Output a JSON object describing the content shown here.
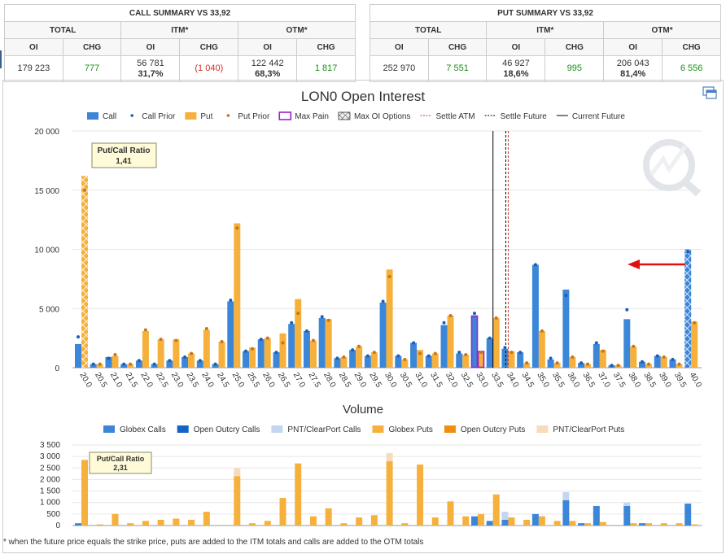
{
  "call_summary": {
    "title": "CALL SUMMARY VS 33,92",
    "group_total": "TOTAL",
    "group_itm": "ITM*",
    "group_otm": "OTM*",
    "col_oi": "OI",
    "col_chg": "CHG",
    "total_oi": "179 223",
    "total_chg": "777",
    "itm_oi": "56 781",
    "itm_pct": "31,7%",
    "itm_chg": "(1 040)",
    "otm_oi": "122 442",
    "otm_pct": "68,3%",
    "otm_chg": "1 817"
  },
  "put_summary": {
    "title": "PUT SUMMARY VS 33,92",
    "group_total": "TOTAL",
    "group_itm": "ITM*",
    "group_otm": "OTM*",
    "col_oi": "OI",
    "col_chg": "CHG",
    "total_oi": "252 970",
    "total_chg": "7 551",
    "itm_oi": "46 927",
    "itm_pct": "18,6%",
    "itm_chg": "995",
    "otm_oi": "206 043",
    "otm_pct": "81,4%",
    "otm_chg": "6 556"
  },
  "colors": {
    "call": "#3b86d8",
    "put": "#f6b13c",
    "call_prior": "#1a5fb4",
    "put_prior": "#c8741a",
    "max_pain": "#9b20c8",
    "settle_atm": "#c0392b",
    "open_outcry_calls": "#1562c8",
    "pnt_calls": "#c4d6ee",
    "open_outcry_puts": "#ef8f12",
    "pnt_puts": "#f6dcbc",
    "arrow": "#e01010"
  },
  "footnote": "* when the future price equals the strike price, puts are added to the ITM totals and calls are added to the OTM totals",
  "chart_data": [
    {
      "type": "bar",
      "title": "LON0 Open Interest",
      "legend": [
        "Call",
        "Call Prior",
        "Put",
        "Put Prior",
        "Max Pain",
        "Max OI Options",
        "Settle ATM",
        "Settle Future",
        "Current Future"
      ],
      "legend_placement": "top",
      "categories": [
        "20.0",
        "20.5",
        "21.0",
        "21.5",
        "22.0",
        "22.5",
        "23.0",
        "23.5",
        "24.0",
        "24.5",
        "25.0",
        "25.5",
        "26.0",
        "26.5",
        "27.0",
        "27.5",
        "28.0",
        "28.5",
        "29.0",
        "29.5",
        "30.0",
        "30.5",
        "31.0",
        "31.5",
        "32.0",
        "32.5",
        "33.0",
        "33.5",
        "34.0",
        "34.5",
        "35.0",
        "35.5",
        "36.0",
        "36.5",
        "37.0",
        "37.5",
        "38.0",
        "38.5",
        "39.0",
        "39.5",
        "40.0"
      ],
      "series": [
        {
          "name": "Call",
          "values": [
            2000,
            300,
            900,
            300,
            600,
            300,
            600,
            900,
            600,
            300,
            5600,
            1400,
            2400,
            1300,
            3700,
            3100,
            4200,
            800,
            1500,
            1000,
            5500,
            1000,
            2100,
            1000,
            3600,
            1200,
            4400,
            2500,
            1600,
            1300,
            8700,
            700,
            6600,
            400,
            2000,
            200,
            4100,
            500,
            1000,
            700,
            10000
          ]
        },
        {
          "name": "Call Prior",
          "values": [
            2600,
            300,
            800,
            300,
            600,
            300,
            600,
            900,
            600,
            300,
            5700,
            1400,
            2400,
            1300,
            3800,
            3100,
            4300,
            800,
            1500,
            1000,
            5600,
            1000,
            2100,
            1000,
            3800,
            1300,
            4600,
            2500,
            1700,
            1300,
            8700,
            800,
            6100,
            400,
            2100,
            200,
            4900,
            500,
            1000,
            700,
            9800
          ]
        },
        {
          "name": "Put",
          "values": [
            16200,
            300,
            1000,
            300,
            3100,
            2400,
            2400,
            1200,
            3200,
            2200,
            12200,
            1700,
            2500,
            2900,
            5800,
            2300,
            4100,
            900,
            1800,
            1300,
            8300,
            700,
            1500,
            1200,
            4400,
            1100,
            1400,
            4200,
            1400,
            400,
            3100,
            400,
            900,
            300,
            1500,
            200,
            1800,
            300,
            900,
            300,
            3900
          ]
        },
        {
          "name": "Put Prior",
          "values": [
            15000,
            300,
            1100,
            300,
            3200,
            2400,
            2300,
            1200,
            3300,
            2200,
            11800,
            1600,
            2500,
            2100,
            4600,
            2300,
            4000,
            900,
            1800,
            1300,
            7700,
            700,
            1200,
            1200,
            4400,
            1100,
            1300,
            4200,
            1300,
            400,
            3100,
            400,
            900,
            300,
            1400,
            200,
            1800,
            300,
            900,
            300,
            3800
          ]
        }
      ],
      "max_pain_strike": "33.0",
      "max_oi_strikes": [
        "20.0",
        "40.0"
      ],
      "settle_atm": 34.0,
      "settle_future": 33.92,
      "current_future": 33.5,
      "annotation": {
        "label": "Put/Call Ratio",
        "value": "1,41"
      },
      "ylim": [
        0,
        20000
      ],
      "yticks": [
        "0",
        "5 000",
        "10 000",
        "15 000",
        "20 000"
      ],
      "grid": true
    },
    {
      "type": "bar",
      "stacked": true,
      "title": "Volume",
      "legend": [
        "Globex Calls",
        "Open Outcry Calls",
        "PNT/ClearPort Calls",
        "Globex Puts",
        "Open Outcry Puts",
        "PNT/ClearPort Puts"
      ],
      "legend_placement": "top",
      "categories_ref": "same strikes as Open Interest",
      "series": [
        {
          "name": "Globex Calls",
          "values": [
            100,
            0,
            0,
            0,
            0,
            0,
            0,
            0,
            0,
            0,
            0,
            0,
            0,
            0,
            0,
            0,
            0,
            0,
            0,
            0,
            0,
            0,
            0,
            0,
            0,
            0,
            400,
            200,
            250,
            0,
            500,
            0,
            1100,
            100,
            850,
            0,
            850,
            100,
            0,
            0,
            950
          ]
        },
        {
          "name": "PNT/ClearPort Calls",
          "values": [
            0,
            0,
            0,
            0,
            0,
            0,
            0,
            0,
            0,
            0,
            0,
            0,
            0,
            0,
            0,
            0,
            0,
            0,
            0,
            0,
            0,
            0,
            0,
            0,
            0,
            0,
            0,
            0,
            350,
            0,
            0,
            0,
            350,
            0,
            0,
            0,
            150,
            0,
            0,
            0,
            0
          ]
        },
        {
          "name": "Globex Puts",
          "values": [
            2850,
            50,
            500,
            100,
            200,
            250,
            300,
            250,
            600,
            0,
            2150,
            100,
            200,
            1200,
            2700,
            400,
            750,
            100,
            350,
            450,
            2800,
            100,
            2650,
            350,
            1050,
            400,
            500,
            1350,
            350,
            250,
            400,
            200,
            200,
            100,
            150,
            0,
            100,
            100,
            100,
            100,
            50
          ]
        },
        {
          "name": "PNT/ClearPort Puts",
          "values": [
            0,
            0,
            0,
            0,
            0,
            0,
            0,
            0,
            0,
            0,
            350,
            0,
            0,
            0,
            0,
            0,
            0,
            0,
            0,
            0,
            350,
            0,
            0,
            0,
            0,
            0,
            0,
            0,
            0,
            0,
            0,
            0,
            0,
            0,
            0,
            0,
            0,
            0,
            0,
            0,
            0
          ]
        }
      ],
      "annotation": {
        "label": "Put/Call Ratio",
        "value": "2,31"
      },
      "ylim": [
        0,
        3500
      ],
      "yticks": [
        "0",
        "500",
        "1 000",
        "1 500",
        "2 000",
        "2 500",
        "3 000",
        "3 500"
      ],
      "grid": true
    }
  ]
}
